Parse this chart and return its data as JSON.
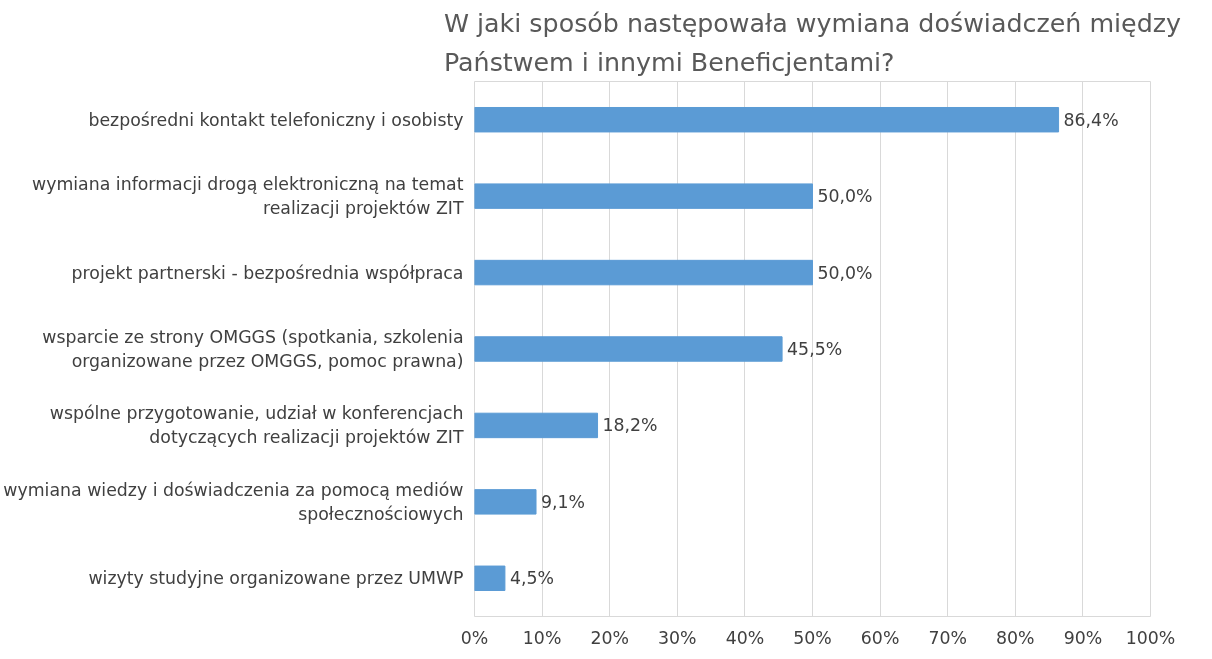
{
  "chart_data": {
    "type": "bar",
    "orientation": "horizontal",
    "title": "W jaki sposób następowała wymiana doświadczeń między Państwem i innymi Beneficjentami?",
    "categories": [
      "bezpośredni kontakt telefoniczny i osobisty",
      "wymiana informacji drogą elektroniczną na temat realizacji projektów ZIT",
      "projekt partnerski - bezpośrednia współpraca",
      "wsparcie ze strony OMGGS (spotkania, szkolenia organizowane przez OMGGS, pomoc prawna)",
      "wspólne przygotowanie, udział w konferencjach dotyczących realizacji projektów ZIT",
      "wymiana wiedzy i doświadczenia za pomocą mediów społecznościowych",
      "wizyty studyjne organizowane przez UMWP"
    ],
    "values": [
      86.4,
      50.0,
      50.0,
      45.5,
      18.2,
      9.1,
      4.5
    ],
    "value_labels": [
      "86,4%",
      "50,0%",
      "50,0%",
      "45,5%",
      "18,2%",
      "9,1%",
      "4,5%"
    ],
    "color": "#5b9bd5",
    "xlim": [
      0,
      100
    ],
    "xticks": [
      {
        "value": 0,
        "label": "0%"
      },
      {
        "value": 10,
        "label": "10%"
      },
      {
        "value": 20,
        "label": "20%"
      },
      {
        "value": 30,
        "label": "30%"
      },
      {
        "value": 40,
        "label": "40%"
      },
      {
        "value": 50,
        "label": "50%"
      },
      {
        "value": 60,
        "label": "60%"
      },
      {
        "value": 70,
        "label": "70%"
      },
      {
        "value": 80,
        "label": "80%"
      },
      {
        "value": 90,
        "label": "90%"
      },
      {
        "value": 100,
        "label": "100%"
      }
    ],
    "grid": "x"
  }
}
